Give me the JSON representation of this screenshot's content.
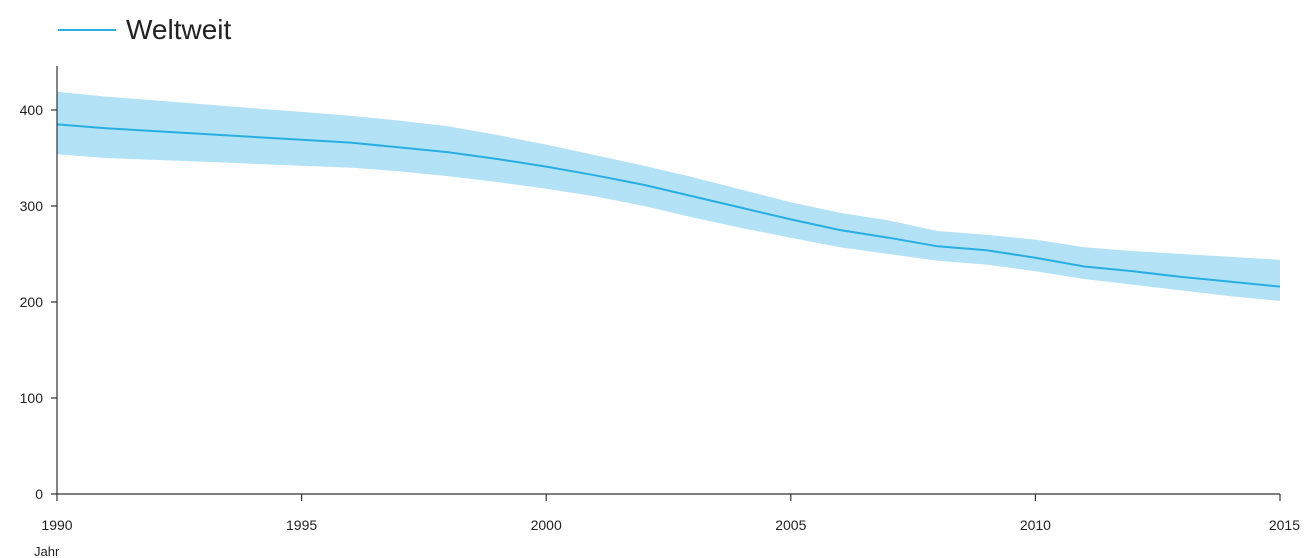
{
  "colors": {
    "line": "#29aee3",
    "band": "#b3e2f7",
    "axis": "#333333",
    "text": "#222222"
  },
  "chart_data": {
    "type": "line",
    "title": "",
    "xlabel": "Jahr",
    "ylabel": "",
    "xlim": [
      1990,
      2015
    ],
    "ylim": [
      0,
      440
    ],
    "x_ticks": [
      1990,
      1995,
      2000,
      2005,
      2010,
      2015
    ],
    "y_ticks": [
      0,
      100,
      200,
      300,
      400
    ],
    "legend": {
      "position": "top-left",
      "entries": [
        "Weltweit"
      ]
    },
    "grid": false,
    "series": [
      {
        "name": "Weltweit",
        "x": [
          1990,
          1991,
          1992,
          1993,
          1994,
          1995,
          1996,
          1997,
          1998,
          1999,
          2000,
          2001,
          2002,
          2003,
          2004,
          2005,
          2006,
          2007,
          2008,
          2009,
          2010,
          2011,
          2012,
          2013,
          2014,
          2015
        ],
        "y": [
          385,
          381,
          378,
          375,
          372,
          369,
          366,
          361,
          356,
          349,
          341,
          332,
          322,
          310,
          298,
          286,
          275,
          267,
          258,
          254,
          246,
          237,
          232,
          226,
          221,
          216
        ],
        "lower": [
          354,
          350,
          348,
          346,
          344,
          342,
          340,
          336,
          331,
          325,
          318,
          310,
          300,
          288,
          277,
          267,
          257,
          250,
          243,
          239,
          232,
          224,
          218,
          212,
          206,
          201
        ],
        "upper": [
          419,
          414,
          410,
          406,
          402,
          398,
          394,
          389,
          383,
          374,
          364,
          353,
          342,
          330,
          317,
          304,
          293,
          285,
          274,
          270,
          265,
          257,
          253,
          250,
          247,
          244
        ]
      }
    ]
  }
}
